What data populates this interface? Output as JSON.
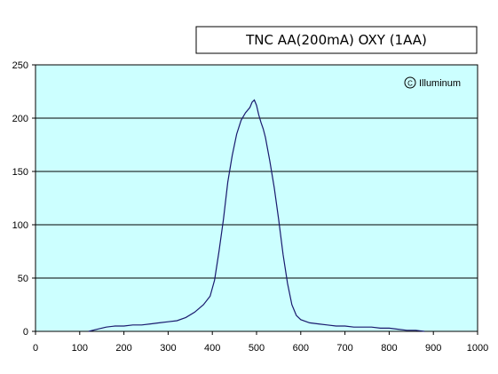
{
  "chart_data": {
    "type": "line",
    "title": "TNC AA(200mA) OXY (1AA)",
    "watermark": "Illuminum",
    "xlabel": "",
    "ylabel": "",
    "xlim": [
      0,
      1000
    ],
    "ylim": [
      0,
      250
    ],
    "xticks": [
      "0",
      "100",
      "200",
      "300",
      "400",
      "500",
      "600",
      "700",
      "800",
      "900",
      "1000"
    ],
    "yticks": [
      "0",
      "50",
      "100",
      "150",
      "200",
      "250"
    ],
    "grid": "horizontal",
    "plot_background": "#ccffff",
    "line_color": "#1a1a6e",
    "series": [
      {
        "x": [
          120,
          140,
          160,
          180,
          200,
          220,
          240,
          260,
          280,
          300,
          320,
          340,
          360,
          380,
          395,
          405,
          415,
          425,
          435,
          445,
          455,
          465,
          475,
          485,
          490,
          495,
          500,
          505,
          510,
          515,
          520,
          530,
          540,
          550,
          560,
          570,
          580,
          590,
          600,
          620,
          640,
          660,
          680,
          700,
          720,
          740,
          760,
          780,
          800,
          820,
          840,
          860,
          880
        ],
        "y": [
          0,
          2,
          4,
          5,
          5,
          6,
          6,
          7,
          8,
          9,
          10,
          13,
          18,
          25,
          33,
          48,
          75,
          105,
          140,
          165,
          185,
          198,
          205,
          210,
          215,
          217,
          212,
          203,
          196,
          190,
          182,
          160,
          135,
          105,
          72,
          45,
          25,
          15,
          11,
          8,
          7,
          6,
          5,
          5,
          4,
          4,
          4,
          3,
          3,
          2,
          1,
          1,
          0
        ]
      }
    ]
  }
}
